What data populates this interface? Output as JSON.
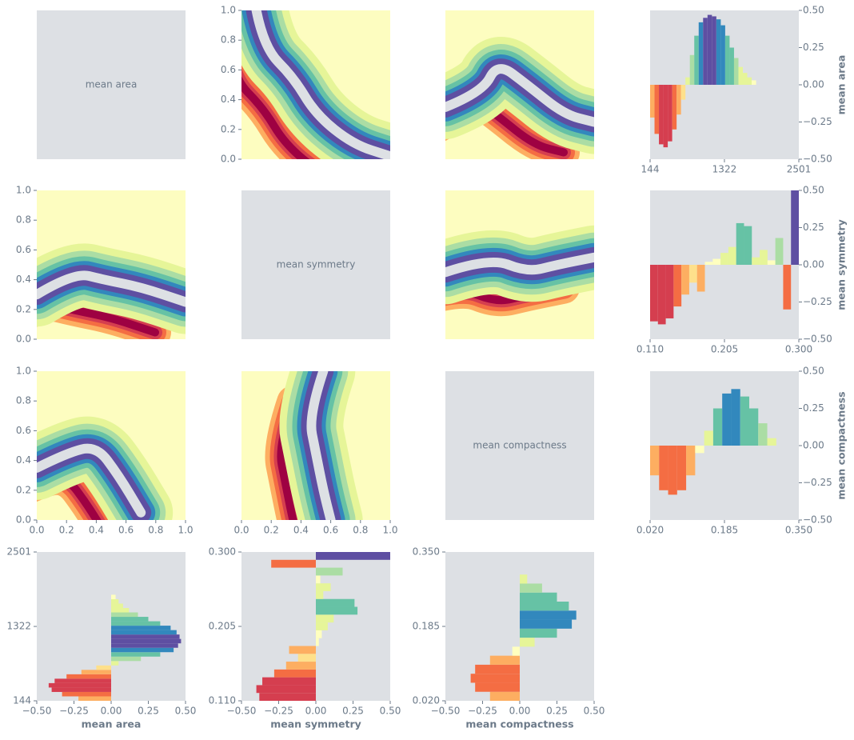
{
  "chart_data": {
    "type": "pair_grid",
    "background": "#dde0e4",
    "colormap": [
      "#9e0142",
      "#d53e4f",
      "#f46d43",
      "#fdae61",
      "#fee08b",
      "#ffffbf",
      "#e6f598",
      "#abdda4",
      "#66c2a5",
      "#3288bd",
      "#5e4fa2"
    ],
    "value_lim": [
      -0.5,
      0.5
    ],
    "value_ticks": [
      {
        "value": -0.5,
        "label": "−0.50"
      },
      {
        "value": -0.25,
        "label": "−0.25"
      },
      {
        "value": 0,
        "label": "0.00"
      },
      {
        "value": 0.25,
        "label": "0.25"
      },
      {
        "value": 0.5,
        "label": "0.50"
      }
    ],
    "unit_lim": [
      0,
      1
    ],
    "unit_ticks": [
      {
        "value": 0,
        "label": "0.0"
      },
      0.2,
      0.4,
      0.6,
      0.8,
      {
        "value": 1,
        "label": "1.0"
      }
    ],
    "variables": [
      {
        "name": "mean area",
        "lim": [
          144,
          2501
        ],
        "ticks": [
          144,
          1322,
          2501
        ],
        "bins": [
          144,
          214,
          284,
          354,
          424,
          494,
          564,
          634,
          704,
          774,
          844,
          914,
          984,
          1054,
          1124,
          1194,
          1264,
          1334,
          1404,
          1474,
          1544,
          1614,
          1684,
          1754,
          1824
        ],
        "values": [
          -0.22,
          -0.33,
          -0.4,
          -0.42,
          -0.38,
          -0.3,
          -0.2,
          -0.1,
          0.05,
          0.2,
          0.33,
          0.42,
          0.45,
          0.47,
          0.46,
          0.44,
          0.4,
          0.33,
          0.25,
          0.18,
          0.12,
          0.08,
          0.05,
          0.03
        ]
      },
      {
        "name": "mean symmetry",
        "lim": [
          0.11,
          0.3
        ],
        "ticks": [
          {
            "value": 0.11,
            "label": "0.110"
          },
          0.205,
          {
            "value": 0.3,
            "label": "0.300"
          }
        ],
        "bins": [
          0.11,
          0.12,
          0.13,
          0.14,
          0.15,
          0.16,
          0.17,
          0.18,
          0.19,
          0.2,
          0.21,
          0.22,
          0.23,
          0.24,
          0.25,
          0.26,
          0.27,
          0.28,
          0.29,
          0.3
        ],
        "values": [
          -0.38,
          -0.4,
          -0.36,
          -0.28,
          -0.2,
          -0.12,
          -0.18,
          0.02,
          0.04,
          0.08,
          0.12,
          0.28,
          0.26,
          0.05,
          0.1,
          0.03,
          0.18,
          -0.3,
          0.5
        ]
      },
      {
        "name": "mean compactness",
        "lim": [
          0.02,
          0.35
        ],
        "ticks": [
          {
            "value": 0.02,
            "label": "0.020"
          },
          0.185,
          {
            "value": 0.35,
            "label": "0.350"
          }
        ],
        "bins": [
          0.02,
          0.04,
          0.06,
          0.08,
          0.1,
          0.12,
          0.14,
          0.16,
          0.18,
          0.2,
          0.22,
          0.24,
          0.26,
          0.28,
          0.3
        ],
        "values": [
          -0.2,
          -0.3,
          -0.33,
          -0.3,
          -0.2,
          -0.05,
          0.1,
          0.25,
          0.35,
          0.38,
          0.33,
          0.25,
          0.15,
          0.05
        ]
      }
    ]
  }
}
